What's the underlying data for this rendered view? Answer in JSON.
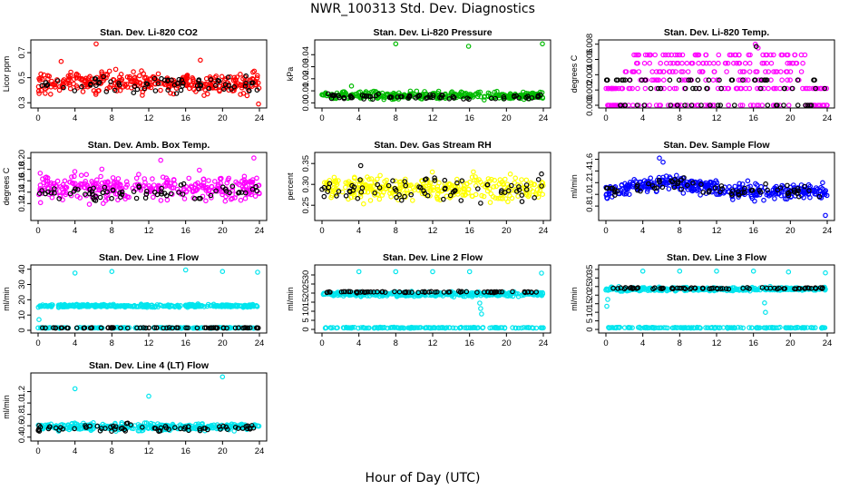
{
  "figure": {
    "title": "NWR_100313 Std. Dev. Diagnostics",
    "xlabel": "Hour of Day (UTC)"
  },
  "chart_data": [
    {
      "type": "scatter",
      "title": "Stan. Dev. Li-820 CO2",
      "ylabel": "Licor ppm",
      "xlim": [
        0,
        24
      ],
      "ylim": [
        0.28,
        0.78
      ],
      "xticks": [
        "0",
        "4",
        "8",
        "12",
        "16",
        "20",
        "24"
      ],
      "yticks": [
        0.3,
        0.5,
        0.7
      ],
      "ytick_labels": [
        "0.3",
        "0.5",
        "0.7"
      ],
      "series": [
        {
          "color": "#ff0000",
          "center": 0.46,
          "spread": 0.08,
          "count": 320,
          "points": [
            [
              6.3,
              0.77
            ],
            [
              23.9,
              0.29
            ],
            [
              11.3,
              0.36
            ],
            [
              2.5,
              0.63
            ],
            [
              17.6,
              0.64
            ]
          ]
        },
        {
          "color": "#000000",
          "center": 0.45,
          "spread": 0.07,
          "count": 70,
          "points": []
        }
      ]
    },
    {
      "type": "scatter",
      "title": "Stan. Dev. Li-820 Pressure",
      "ylabel": "kPa",
      "xlim": [
        0,
        24
      ],
      "ylim": [
        -0.002,
        0.05
      ],
      "xticks": [
        "0",
        "4",
        "8",
        "12",
        "16",
        "20",
        "24"
      ],
      "yticks": [
        0.0,
        0.01,
        0.02,
        0.03,
        0.04
      ],
      "ytick_labels": [
        "0.00",
        "0.01",
        "0.02",
        "0.03",
        "0.04"
      ],
      "series": [
        {
          "color": "#00bb00",
          "center": 0.006,
          "spread": 0.003,
          "count": 320,
          "points": [
            [
              8.0,
              0.049
            ],
            [
              15.9,
              0.047
            ],
            [
              23.9,
              0.049
            ],
            [
              3.2,
              0.014
            ]
          ]
        },
        {
          "color": "#000000",
          "center": 0.005,
          "spread": 0.002,
          "count": 70,
          "points": []
        }
      ]
    },
    {
      "type": "scatter",
      "title": "Stan. Dev. Li-820 Temp.",
      "ylabel": "degrees C",
      "xlim": [
        0,
        24
      ],
      "ylim": [
        0.0,
        0.0082
      ],
      "xticks": [
        "0",
        "4",
        "8",
        "12",
        "16",
        "20",
        "24"
      ],
      "yticks": [
        0.0,
        0.002,
        0.004,
        0.006,
        0.008
      ],
      "ytick_labels": [
        "0.000",
        "0.002",
        "0.004",
        "0.006",
        "0.008"
      ],
      "series": [
        {
          "color": "#ff00ff",
          "levels": [
            0.0,
            0.0022,
            0.0033,
            0.0044,
            0.0055,
            0.0066
          ],
          "count": 300,
          "points": [
            [
              16.2,
              0.008
            ],
            [
              16.5,
              0.0075
            ],
            [
              7.5,
              0.0066
            ]
          ]
        },
        {
          "color": "#000000",
          "levels": [
            0.0,
            0.0022,
            0.0033
          ],
          "count": 70,
          "points": [
            [
              16.3,
              0.0077
            ]
          ]
        }
      ]
    },
    {
      "type": "scatter",
      "title": "Stan. Dev. Amb. Box Temp.",
      "ylabel": "degrees C",
      "xlim": [
        0,
        24
      ],
      "ylim": [
        0.095,
        0.205
      ],
      "xticks": [
        "0",
        "4",
        "8",
        "12",
        "16",
        "20",
        "24"
      ],
      "yticks": [
        0.12,
        0.14,
        0.16,
        0.18,
        0.2
      ],
      "ytick_labels": [
        "0.12",
        "0.14",
        "0.16",
        "0.18",
        "0.20"
      ],
      "series": [
        {
          "color": "#ff00ff",
          "center": 0.148,
          "spread": 0.022,
          "count": 320,
          "points": [
            [
              23.4,
              0.2
            ],
            [
              13.3,
              0.196
            ]
          ]
        },
        {
          "color": "#000000",
          "center": 0.14,
          "spread": 0.012,
          "count": 70,
          "points": []
        }
      ]
    },
    {
      "type": "scatter",
      "title": "Stan. Dev. Gas Stream RH",
      "ylabel": "percent",
      "xlim": [
        0,
        24
      ],
      "ylim": [
        0.22,
        0.37
      ],
      "xticks": [
        "0",
        "4",
        "8",
        "12",
        "16",
        "20",
        "24"
      ],
      "yticks": [
        0.25,
        0.3,
        0.35
      ],
      "ytick_labels": [
        "0.25",
        "0.30",
        "0.35"
      ],
      "series": [
        {
          "color": "#ffff00",
          "center": 0.29,
          "spread": 0.028,
          "count": 320,
          "points": []
        },
        {
          "color": "#000000",
          "center": 0.29,
          "spread": 0.025,
          "count": 70,
          "points": [
            [
              4.2,
              0.345
            ],
            [
              23.8,
              0.325
            ],
            [
              17.2,
              0.255
            ]
          ]
        }
      ]
    },
    {
      "type": "scatter",
      "title": "Stan. Dev. Sample Flow",
      "ylabel": "ml/min",
      "xlim": [
        0,
        24
      ],
      "ylim": [
        0.6,
        1.67
      ],
      "xticks": [
        "0",
        "4",
        "8",
        "12",
        "16",
        "20",
        "24"
      ],
      "yticks": [
        0.8,
        1.0,
        1.2,
        1.4,
        1.6
      ],
      "ytick_labels": [
        "0.8",
        "1.0",
        "1.2",
        "1.4",
        "1.6"
      ],
      "series": [
        {
          "color": "#0000ff",
          "profile": "hump",
          "center": 1.05,
          "spread": 0.13,
          "count": 360,
          "points": [
            [
              5.8,
              1.62
            ],
            [
              23.8,
              0.64
            ],
            [
              6.2,
              1.55
            ]
          ]
        },
        {
          "color": "#000000",
          "profile": "hump",
          "center": 1.05,
          "spread": 0.1,
          "count": 70,
          "points": []
        }
      ]
    },
    {
      "type": "scatter",
      "title": "Stan. Dev. Line 1 Flow",
      "ylabel": "ml/min",
      "xlim": [
        0,
        24
      ],
      "ylim": [
        0,
        41
      ],
      "xticks": [
        "0",
        "4",
        "8",
        "12",
        "16",
        "20",
        "24"
      ],
      "yticks": [
        0,
        10,
        20,
        30,
        40
      ],
      "ytick_labels": [
        "0",
        "10",
        "20",
        "30",
        "40"
      ],
      "series": [
        {
          "color": "#00e5ee",
          "center": 16,
          "spread": 0.9,
          "count": 340,
          "points": [
            [
              4.0,
              37.5
            ],
            [
              8.0,
              38.5
            ],
            [
              16.0,
              39.5
            ],
            [
              20.0,
              38.5
            ],
            [
              23.8,
              38.0
            ],
            [
              0.1,
              7.0
            ]
          ]
        },
        {
          "color": "#00e5ee",
          "center": 1.6,
          "spread": 0.25,
          "count": 160,
          "points": []
        },
        {
          "color": "#000000",
          "center": 1.6,
          "spread": 0.2,
          "count": 70,
          "points": []
        }
      ]
    },
    {
      "type": "scatter",
      "title": "Stan. Dev. Line 2 Flow",
      "ylabel": "ml/min",
      "xlim": [
        0,
        24
      ],
      "ylim": [
        -0.5,
        34
      ],
      "xticks": [
        "0",
        "4",
        "8",
        "12",
        "16",
        "20",
        "24"
      ],
      "yticks": [
        0,
        5,
        10,
        15,
        20,
        25,
        30
      ],
      "ytick_labels": [
        "0",
        "5",
        "10",
        "15",
        "20",
        "25",
        "30"
      ],
      "series": [
        {
          "color": "#00e5ee",
          "center": 19.5,
          "spread": 1.2,
          "count": 340,
          "points": [
            [
              4.0,
              31.8
            ],
            [
              8.0,
              31.8
            ],
            [
              12.0,
              31.8
            ],
            [
              16.0,
              31.8
            ],
            [
              23.8,
              31.0
            ],
            [
              17.2,
              11.5
            ],
            [
              17.3,
              8.5
            ],
            [
              17.1,
              14.5
            ]
          ]
        },
        {
          "color": "#00e5ee",
          "center": 0.9,
          "spread": 0.25,
          "count": 160,
          "points": []
        },
        {
          "color": "#000000",
          "center": 20.6,
          "spread": 0.4,
          "count": 70,
          "points": []
        }
      ]
    },
    {
      "type": "scatter",
      "title": "Stan. Dev. Line 3 Flow",
      "ylabel": "ml/min",
      "xlim": [
        0,
        24
      ],
      "ylim": [
        -0.5,
        36
      ],
      "xticks": [
        "0",
        "4",
        "8",
        "12",
        "16",
        "20",
        "24"
      ],
      "yticks": [
        0,
        5,
        10,
        15,
        20,
        25,
        30,
        35
      ],
      "ytick_labels": [
        "0",
        "5",
        "10",
        "15",
        "20",
        "25",
        "30",
        "35"
      ],
      "series": [
        {
          "color": "#00e5ee",
          "center": 23.5,
          "spread": 1.0,
          "count": 340,
          "points": [
            [
              4.0,
              34.0
            ],
            [
              8.0,
              34.0
            ],
            [
              12.0,
              34.0
            ],
            [
              16.0,
              34.0
            ],
            [
              19.8,
              33.5
            ],
            [
              23.8,
              33.0
            ],
            [
              0.1,
              13.5
            ],
            [
              0.2,
              17.5
            ],
            [
              17.3,
              10.0
            ],
            [
              17.2,
              15.5
            ]
          ]
        },
        {
          "color": "#00e5ee",
          "center": 1.0,
          "spread": 0.25,
          "count": 160,
          "points": []
        },
        {
          "color": "#000000",
          "center": 24.0,
          "spread": 0.5,
          "count": 70,
          "points": []
        }
      ]
    },
    {
      "type": "scatter",
      "title": "Stan. Dev. Line 4 (LT) Flow",
      "ylabel": "ml/min",
      "xlim": [
        0,
        24
      ],
      "ylim": [
        0.38,
        1.48
      ],
      "xticks": [
        "0",
        "4",
        "8",
        "12",
        "16",
        "20",
        "24"
      ],
      "yticks": [
        0.4,
        0.6,
        0.8,
        1.0,
        1.2
      ],
      "ytick_labels": [
        "0.4",
        "0.6",
        "0.8",
        "1.0",
        "1.2"
      ],
      "series": [
        {
          "color": "#00e5ee",
          "center": 0.58,
          "spread": 0.06,
          "count": 360,
          "points": [
            [
              4.0,
              1.25
            ],
            [
              12.0,
              1.12
            ],
            [
              20.0,
              1.46
            ]
          ]
        },
        {
          "color": "#000000",
          "center": 0.56,
          "spread": 0.06,
          "count": 70,
          "points": []
        }
      ]
    }
  ]
}
